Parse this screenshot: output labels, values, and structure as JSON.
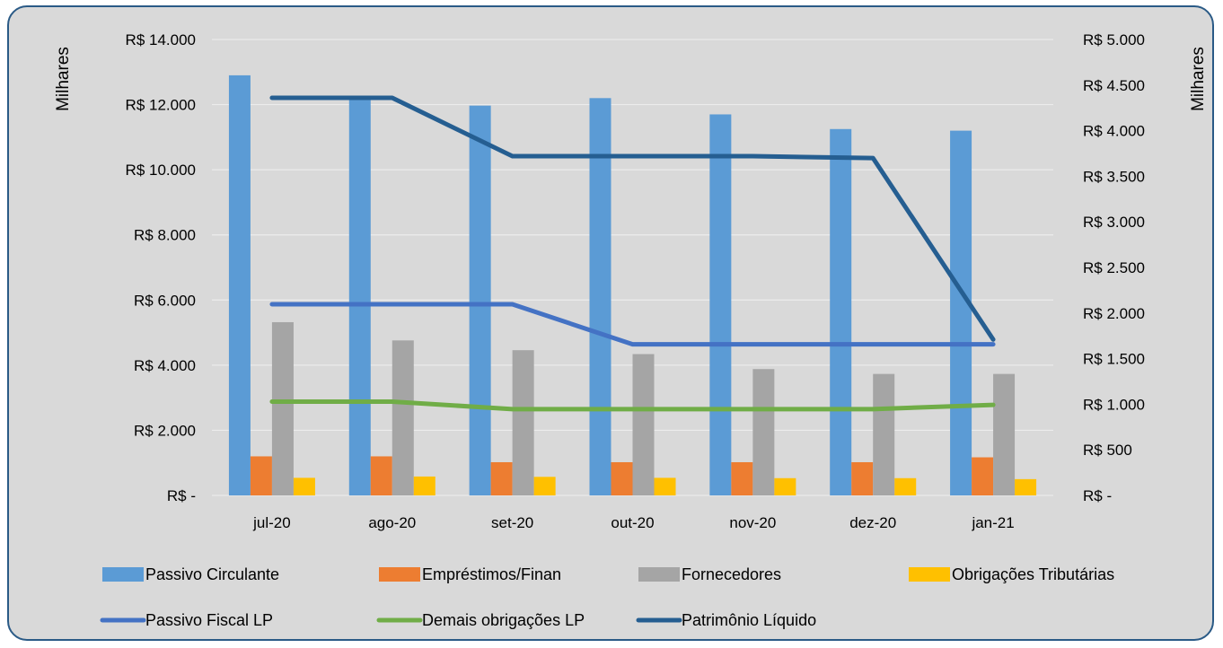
{
  "chart_data": {
    "type": "bar",
    "categories": [
      "jul-20",
      "ago-20",
      "set-20",
      "out-20",
      "nov-20",
      "dez-20",
      "jan-21"
    ],
    "left_axis": {
      "label": "Milhares",
      "ylim": [
        0,
        14000
      ],
      "ticks": [
        0,
        2000,
        4000,
        6000,
        8000,
        10000,
        12000,
        14000
      ],
      "tick_labels": [
        "R$ -",
        "R$ 2.000",
        "R$ 4.000",
        "R$ 6.000",
        "R$ 8.000",
        "R$ 10.000",
        "R$ 12.000",
        "R$ 14.000"
      ]
    },
    "right_axis": {
      "label": "Milhares",
      "ylim": [
        0,
        5000
      ],
      "ticks": [
        0,
        500,
        1000,
        1500,
        2000,
        2500,
        3000,
        3500,
        4000,
        4500,
        5000
      ],
      "tick_labels": [
        "R$ -",
        "R$ 500",
        "R$ 1.000",
        "R$ 1.500",
        "R$ 2.000",
        "R$ 2.500",
        "R$ 3.000",
        "R$ 3.500",
        "R$ 4.000",
        "R$ 4.500",
        "R$ 5.000"
      ]
    },
    "bar_series": [
      {
        "name": "Passivo Circulante",
        "color": "#5b9bd5",
        "values": [
          12900,
          12200,
          11970,
          12200,
          11700,
          11250,
          11200
        ]
      },
      {
        "name": "Empréstimos/Finan",
        "color": "#ed7d31",
        "values": [
          1200,
          1200,
          1020,
          1020,
          1020,
          1020,
          1170
        ]
      },
      {
        "name": "Fornecedores",
        "color": "#a5a5a5",
        "values": [
          5320,
          4760,
          4460,
          4340,
          3880,
          3730,
          3730
        ]
      },
      {
        "name": "Obrigações Tributárias",
        "color": "#ffc000",
        "values": [
          540,
          580,
          570,
          540,
          530,
          530,
          500
        ]
      }
    ],
    "line_series": [
      {
        "name": "Passivo Fiscal LP",
        "color": "#4472c4",
        "axis": "left",
        "values": [
          5870,
          5870,
          5870,
          4640,
          4640,
          4640,
          4640
        ]
      },
      {
        "name": "Demais obrigações LP",
        "color": "#70ad47",
        "axis": "left",
        "values": [
          2880,
          2880,
          2650,
          2650,
          2650,
          2650,
          2780
        ]
      },
      {
        "name": "Patrimônio Líquido",
        "color": "#255e91",
        "axis": "right",
        "values": [
          4360,
          4360,
          3720,
          3720,
          3720,
          3700,
          1710
        ]
      }
    ],
    "grid": true,
    "legend_position": "bottom"
  }
}
